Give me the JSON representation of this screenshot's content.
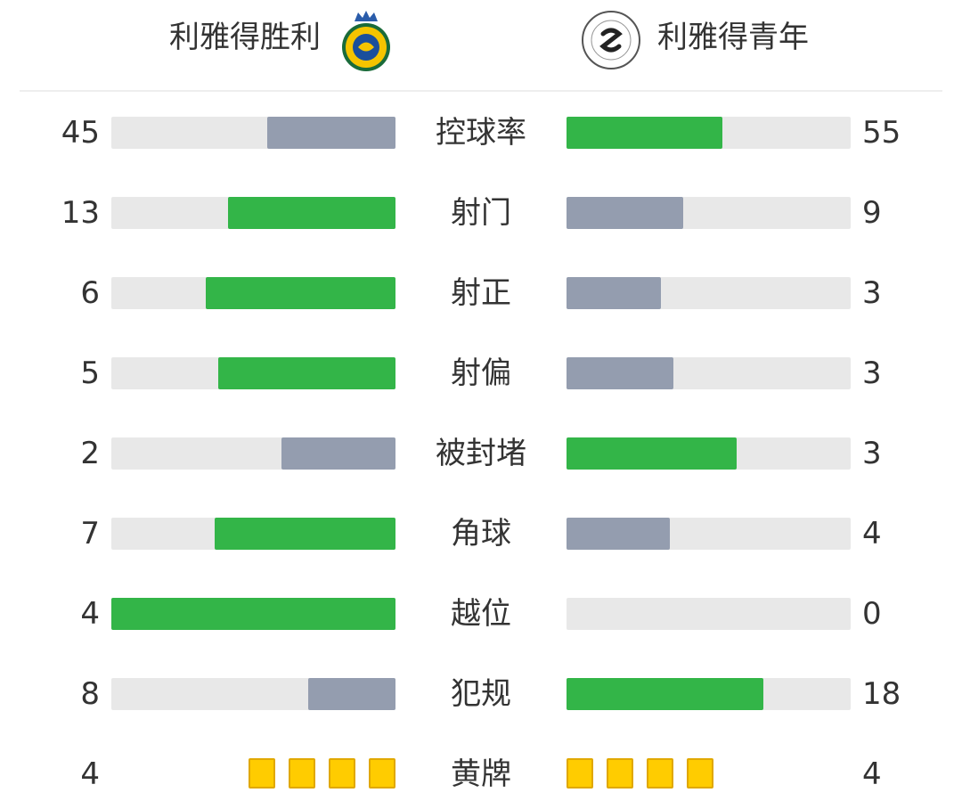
{
  "header": {
    "home_team": "利雅得胜利",
    "away_team": "利雅得青年"
  },
  "stats": [
    {
      "label": "控球率",
      "home": 45,
      "away": 55
    },
    {
      "label": "射门",
      "home": 13,
      "away": 9
    },
    {
      "label": "射正",
      "home": 6,
      "away": 3
    },
    {
      "label": "射偏",
      "home": 5,
      "away": 3
    },
    {
      "label": "被封堵",
      "home": 2,
      "away": 3
    },
    {
      "label": "角球",
      "home": 7,
      "away": 4
    },
    {
      "label": "越位",
      "home": 4,
      "away": 0
    },
    {
      "label": "犯规",
      "home": 8,
      "away": 18
    }
  ],
  "cards": {
    "label": "黄牌",
    "home": 4,
    "away": 4
  }
}
